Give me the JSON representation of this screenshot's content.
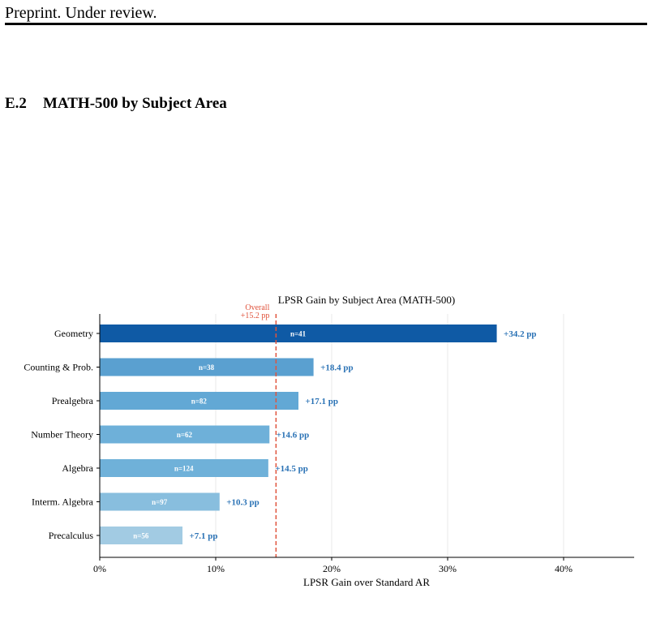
{
  "page": {
    "running_header": "Preprint. Under review.",
    "section_number": "E.2",
    "section_title": "MATH-500 by Subject Area"
  },
  "chart_data": {
    "type": "bar",
    "orientation": "horizontal",
    "title": "LPSR Gain by Subject Area (MATH-500)",
    "xlabel": "LPSR Gain over Standard AR",
    "ylabel": "",
    "xlim": [
      0,
      46
    ],
    "xticks": [
      0,
      10,
      20,
      30,
      40
    ],
    "xtick_labels": [
      "0%",
      "10%",
      "20%",
      "30%",
      "40%"
    ],
    "grid": "vertical",
    "categories": [
      "Geometry",
      "Counting & Prob.",
      "Prealgebra",
      "Number Theory",
      "Algebra",
      "Interm. Algebra",
      "Precalculus"
    ],
    "values": [
      34.2,
      18.4,
      17.1,
      14.6,
      14.5,
      10.3,
      7.1
    ],
    "value_labels": [
      "+34.2 pp",
      "+18.4 pp",
      "+17.1 pp",
      "+14.6 pp",
      "+14.5 pp",
      "+10.3 pp",
      "+7.1 pp"
    ],
    "counts": [
      "n=41",
      "n=38",
      "n=82",
      "n=62",
      "n=124",
      "n=97",
      "n=56"
    ],
    "bar_colors": [
      "#0f5aa5",
      "#5aa0d0",
      "#62a8d5",
      "#6eb0d9",
      "#6fb1d9",
      "#88bede",
      "#a2cbe3"
    ],
    "label_color": "#2a72b5",
    "reference_line": {
      "value": 15.2,
      "label_line1": "Overall",
      "label_line2": "+15.2 pp",
      "color": "#e0533c"
    }
  }
}
